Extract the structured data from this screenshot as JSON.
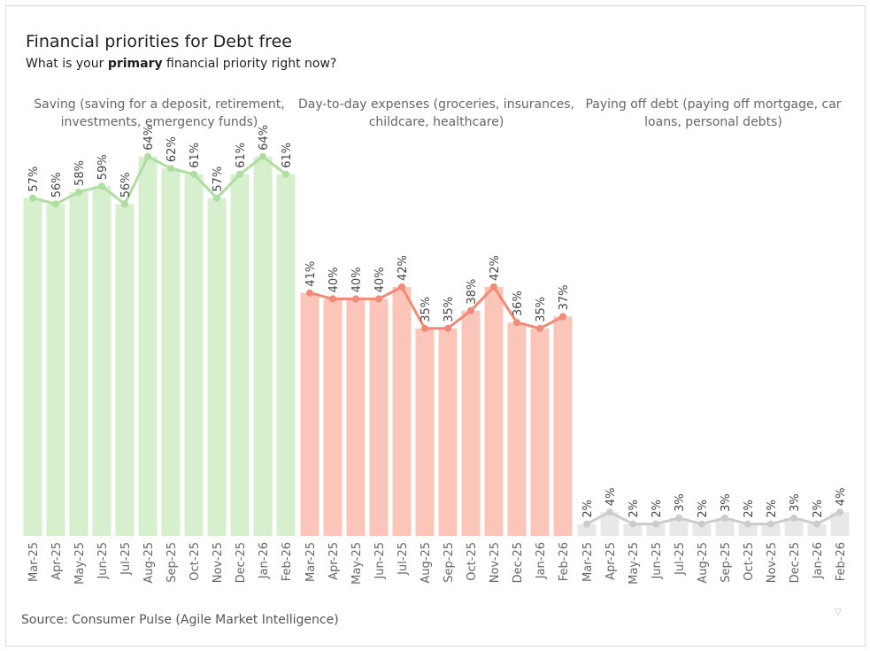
{
  "title": "Financial priorities for Debt free",
  "subtitle": {
    "prefix": "What is your ",
    "bold": "primary",
    "suffix": " financial priority right now?"
  },
  "source": "Source: Consumer Pulse (Agile Market Intelligence)",
  "corner_icon": "▽",
  "chart_data": {
    "type": "bar",
    "overlay": "line",
    "categories": [
      "Mar-25",
      "Apr-25",
      "May-25",
      "Jun-25",
      "Jul-25",
      "Aug-25",
      "Sep-25",
      "Oct-25",
      "Nov-25",
      "Dec-25",
      "Jan-26",
      "Feb-26"
    ],
    "value_suffix": "%",
    "ylim": [
      0,
      68
    ],
    "panels": [
      {
        "name": "Saving",
        "title_lines": [
          "Saving (saving for a deposit, retirement,",
          "investments, emergency funds)"
        ],
        "bar_color": "#d6efcd",
        "line_color": "#aedea0",
        "values": [
          57,
          56,
          58,
          59,
          56,
          64,
          62,
          61,
          57,
          61,
          64,
          61
        ]
      },
      {
        "name": "Day-to-day expenses",
        "title_lines": [
          "Day-to-day expenses (groceries, insurances,",
          "childcare, healthcare)"
        ],
        "bar_color": "#fbc6b9",
        "line_color": "#f18a76",
        "values": [
          41,
          40,
          40,
          40,
          42,
          35,
          35,
          38,
          42,
          36,
          35,
          37
        ]
      },
      {
        "name": "Paying off debt",
        "title_lines": [
          "Paying off debt (paying off mortgage, car",
          "loans, personal debts)"
        ],
        "bar_color": "#e8e8e8",
        "line_color": "#cccccc",
        "values": [
          2,
          4,
          2,
          2,
          3,
          2,
          3,
          2,
          2,
          3,
          2,
          4
        ]
      }
    ]
  }
}
